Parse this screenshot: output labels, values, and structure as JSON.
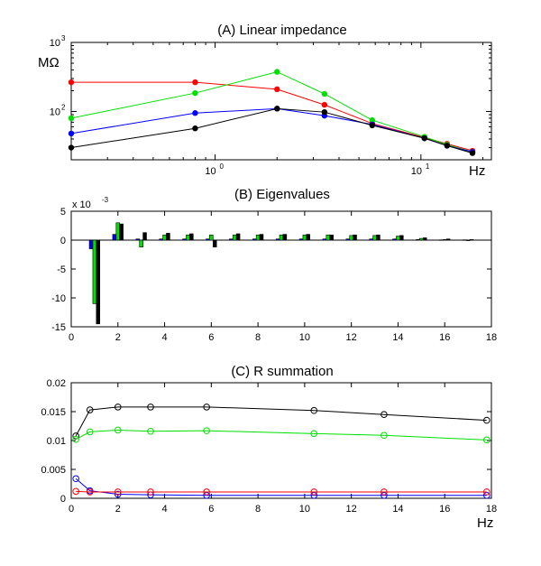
{
  "chart_data": [
    {
      "id": "A",
      "type": "line",
      "title": "(A) Linear impedance",
      "xscale": "log",
      "yscale": "log",
      "xlim": [
        0.2,
        22
      ],
      "ylim": [
        20,
        1000
      ],
      "yunit": "MΩ",
      "xunit": "Hz",
      "x_ticks": [
        {
          "base": "10",
          "exp": "0",
          "value": 1
        },
        {
          "base": "10",
          "exp": "1",
          "value": 10
        }
      ],
      "y_ticks": [
        {
          "base": "10",
          "exp": "2",
          "value": 100
        },
        {
          "base": "10",
          "exp": "3",
          "value": 1000
        }
      ],
      "series": [
        {
          "name": "red",
          "color": "#ff0000",
          "x": [
            0.2,
            0.8,
            2,
            3.4,
            5.8,
            10.4,
            13.4,
            17.8
          ],
          "y": [
            265,
            265,
            210,
            125,
            67,
            42,
            34,
            27
          ]
        },
        {
          "name": "green",
          "color": "#00e000",
          "x": [
            0.2,
            0.8,
            2,
            3.4,
            5.8,
            10.4,
            13.4,
            17.8
          ],
          "y": [
            80,
            185,
            375,
            180,
            75,
            43,
            33,
            26
          ]
        },
        {
          "name": "blue",
          "color": "#0000ff",
          "x": [
            0.2,
            0.8,
            2,
            3.4,
            5.8,
            10.4,
            13.4,
            17.8
          ],
          "y": [
            48,
            95,
            110,
            87,
            65,
            41,
            32,
            26
          ]
        },
        {
          "name": "black",
          "color": "#000000",
          "x": [
            0.2,
            0.8,
            2,
            3.4,
            5.8,
            10.4,
            13.4,
            17.8
          ],
          "y": [
            30,
            57,
            110,
            98,
            63,
            41,
            32,
            25
          ]
        }
      ]
    },
    {
      "id": "B",
      "type": "bar",
      "title": "(B) Eigenvalues",
      "scale_label": {
        "base": "x 10",
        "exp": "-3"
      },
      "xlim": [
        0,
        18
      ],
      "ylim": [
        -15,
        5
      ],
      "x_ticks": [
        "0",
        "2",
        "4",
        "6",
        "8",
        "10",
        "12",
        "14",
        "16",
        "18"
      ],
      "y_ticks": [
        "5",
        "0",
        "-5",
        "-10",
        "-15"
      ],
      "x_tick_values": [
        0,
        2,
        4,
        6,
        8,
        10,
        12,
        14,
        16,
        18
      ],
      "y_tick_values": [
        5,
        0,
        -5,
        -10,
        -15
      ],
      "series": [
        {
          "name": "blue",
          "color": "#0000ff",
          "values": [
            -1.5,
            1.0,
            0.2,
            0.2,
            0.2,
            0.2,
            0.2,
            0.2,
            0.2,
            0.2,
            0.2,
            0.2,
            0.2,
            0.2,
            0.1,
            0.05,
            0.05
          ]
        },
        {
          "name": "green",
          "color": "#00e000",
          "values": [
            -11,
            3.0,
            -1.2,
            0.9,
            0.9,
            0.9,
            0.9,
            0.9,
            0.9,
            0.9,
            0.9,
            0.8,
            0.8,
            0.7,
            0.3,
            0.1,
            0.0
          ]
        },
        {
          "name": "black",
          "color": "#000000",
          "values": [
            -14.5,
            2.8,
            1.3,
            1.2,
            1.1,
            -1.2,
            1.1,
            1.0,
            1.0,
            1.0,
            0.9,
            0.9,
            0.9,
            0.8,
            0.4,
            0.2,
            0.1
          ]
        }
      ],
      "group_x": [
        1,
        2,
        3,
        4,
        5,
        6,
        7,
        8,
        9,
        10,
        11,
        12,
        13,
        14,
        15,
        16,
        17
      ]
    },
    {
      "id": "C",
      "type": "line",
      "title": "(C) R summation",
      "xunit": "Hz",
      "xlim": [
        0,
        18
      ],
      "ylim": [
        0,
        0.02
      ],
      "x_ticks": [
        "0",
        "2",
        "4",
        "6",
        "8",
        "10",
        "12",
        "14",
        "16",
        "18"
      ],
      "y_ticks": [
        "0.02",
        "0.015",
        "0.01",
        "0.005",
        "0"
      ],
      "x_tick_values": [
        0,
        2,
        4,
        6,
        8,
        10,
        12,
        14,
        16,
        18
      ],
      "y_tick_values": [
        0.02,
        0.015,
        0.01,
        0.005,
        0
      ],
      "series": [
        {
          "name": "black",
          "color": "#000000",
          "x": [
            0.2,
            0.8,
            2,
            3.4,
            5.8,
            10.4,
            13.4,
            17.8
          ],
          "y": [
            0.0108,
            0.0153,
            0.0158,
            0.0158,
            0.0158,
            0.0152,
            0.0145,
            0.0135
          ]
        },
        {
          "name": "green",
          "color": "#00e000",
          "x": [
            0.2,
            0.8,
            2,
            3.4,
            5.8,
            10.4,
            13.4,
            17.8
          ],
          "y": [
            0.0102,
            0.0115,
            0.0118,
            0.0116,
            0.0117,
            0.0112,
            0.0109,
            0.0101
          ]
        },
        {
          "name": "blue",
          "color": "#0000ff",
          "x": [
            0.2,
            0.8,
            2,
            3.4,
            5.8,
            10.4,
            13.4,
            17.8
          ],
          "y": [
            0.0034,
            0.0013,
            0.0007,
            0.0006,
            0.0005,
            0.0005,
            0.0005,
            0.0005
          ]
        },
        {
          "name": "red",
          "color": "#ff0000",
          "x": [
            0.2,
            0.8,
            2,
            3.4,
            5.8,
            10.4,
            13.4,
            17.8
          ],
          "y": [
            0.0012,
            0.0011,
            0.0011,
            0.0011,
            0.0011,
            0.0011,
            0.0011,
            0.0011
          ]
        }
      ]
    }
  ]
}
